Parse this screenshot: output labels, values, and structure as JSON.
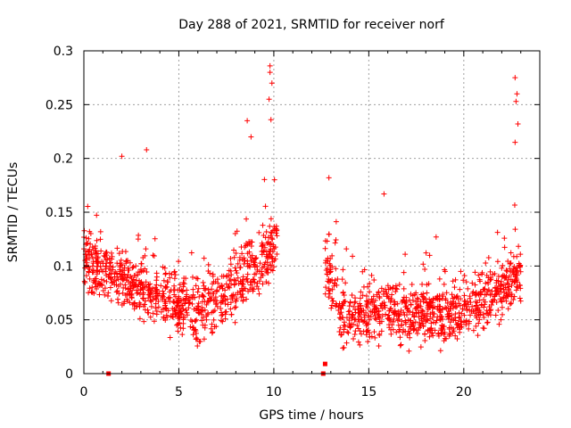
{
  "chart_data": {
    "type": "scatter",
    "title": "Day 288 of 2021, SRMTID for receiver norf",
    "xlabel": "GPS time / hours",
    "ylabel": "SRMTID / TECUs",
    "xlim": [
      0,
      24
    ],
    "ylim": [
      0,
      0.3
    ],
    "x_ticks": [
      0,
      5,
      10,
      15,
      20
    ],
    "x_tick_labels": [
      "0",
      "5",
      "10",
      "15",
      "20"
    ],
    "y_ticks": [
      0,
      0.05,
      0.1,
      0.15,
      0.2,
      0.25,
      0.3
    ],
    "y_tick_labels": [
      "0",
      "0.05",
      "0.1",
      "0.15",
      "0.2",
      "0.25",
      "0.3"
    ],
    "grid": true,
    "marker": "+",
    "color": "#ff0000",
    "series": [
      {
        "name": "SRMTID",
        "segments": [
          {
            "x_start": 0.0,
            "x_end": 10.2,
            "note": "dense scatter, baseline ~0.05-0.12"
          },
          {
            "x_start": 12.7,
            "x_end": 23.0,
            "note": "dense scatter, baseline ~0.04-0.08"
          }
        ],
        "peaks": [
          {
            "x": 9.8,
            "y": 0.286
          },
          {
            "x": 9.8,
            "y": 0.28
          },
          {
            "x": 9.9,
            "y": 0.27
          },
          {
            "x": 9.75,
            "y": 0.255
          },
          {
            "x": 9.85,
            "y": 0.236
          },
          {
            "x": 8.6,
            "y": 0.235
          },
          {
            "x": 8.8,
            "y": 0.22
          },
          {
            "x": 3.3,
            "y": 0.208
          },
          {
            "x": 2.0,
            "y": 0.202
          },
          {
            "x": 22.7,
            "y": 0.275
          },
          {
            "x": 22.8,
            "y": 0.26
          },
          {
            "x": 22.75,
            "y": 0.253
          },
          {
            "x": 22.85,
            "y": 0.232
          },
          {
            "x": 22.7,
            "y": 0.215
          },
          {
            "x": 12.9,
            "y": 0.182
          },
          {
            "x": 15.8,
            "y": 0.167
          }
        ],
        "zero_points": [
          {
            "x": 1.3,
            "y": 0.0
          },
          {
            "x": 12.6,
            "y": 0.0
          },
          {
            "x": 12.7,
            "y": 0.009
          }
        ]
      }
    ]
  }
}
